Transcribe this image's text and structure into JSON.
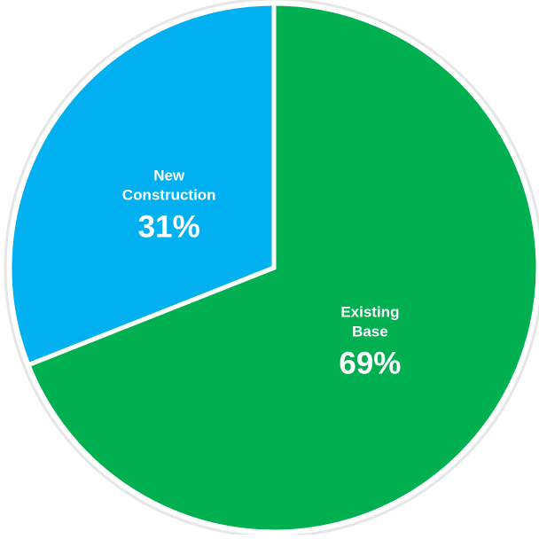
{
  "chart_data": {
    "type": "pie",
    "categories": [
      "Existing Base",
      "New Construction"
    ],
    "values": [
      69,
      31
    ],
    "slices": [
      {
        "name_lines": [
          "Existing",
          "Base"
        ],
        "value": 69,
        "value_label": "69%",
        "color": "#00B050"
      },
      {
        "name_lines": [
          "New",
          "Construction"
        ],
        "value": 31,
        "value_label": "31%",
        "color": "#00B0F0"
      }
    ],
    "start": "12 o'clock",
    "direction": "clockwise",
    "border_color": "#E6E6E6",
    "separator_color": "#FFFFFF",
    "legend": "none",
    "title": ""
  }
}
